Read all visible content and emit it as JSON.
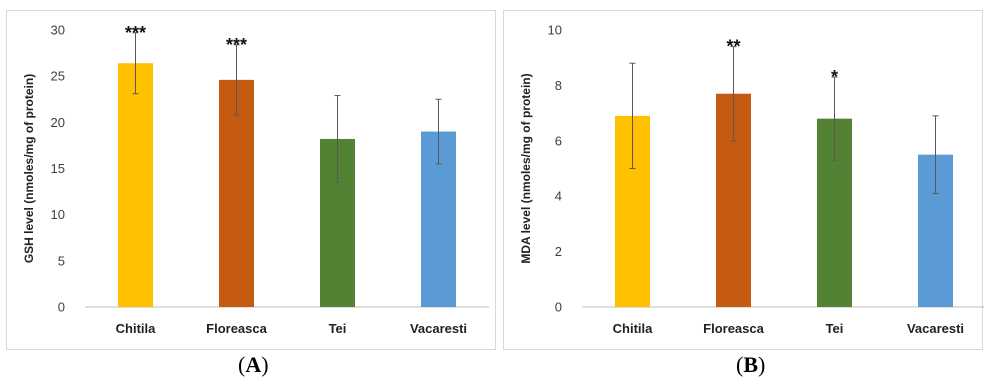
{
  "chart_data": [
    {
      "panel": "A",
      "type": "bar",
      "categories": [
        "Chitila",
        "Floreasca",
        "Tei",
        "Vacaresti"
      ],
      "values": [
        26.4,
        24.6,
        18.2,
        19.0
      ],
      "error": [
        3.3,
        3.8,
        4.7,
        3.5
      ],
      "significance": [
        "***",
        "***",
        "",
        ""
      ],
      "colors": [
        "#FFC000",
        "#C55A11",
        "#548235",
        "#5B9BD5"
      ],
      "ylabel": "GSH level (nmoles/mg of protein)",
      "xlabel": "",
      "ylim": [
        0,
        30
      ],
      "yticks": [
        0,
        5,
        10,
        15,
        20,
        25,
        30
      ],
      "grid": false,
      "legend": "none"
    },
    {
      "panel": "B",
      "type": "bar",
      "categories": [
        "Chitila",
        "Floreasca",
        "Tei",
        "Vacaresti"
      ],
      "values": [
        6.9,
        7.7,
        6.8,
        5.5
      ],
      "error": [
        1.9,
        1.7,
        1.5,
        1.4
      ],
      "significance": [
        "",
        "**",
        "*",
        ""
      ],
      "colors": [
        "#FFC000",
        "#C55A11",
        "#548235",
        "#5B9BD5"
      ],
      "ylabel": "MDA level (nmoles/mg of protein)",
      "xlabel": "",
      "ylim": [
        0,
        10
      ],
      "yticks": [
        0,
        2,
        4,
        6,
        8,
        10
      ],
      "grid": false,
      "legend": "none"
    }
  ],
  "labels": {
    "a_letter": "A",
    "a_open": "(",
    "a_close": ")",
    "b_letter": "B",
    "b_open": "(",
    "b_close": ")"
  }
}
